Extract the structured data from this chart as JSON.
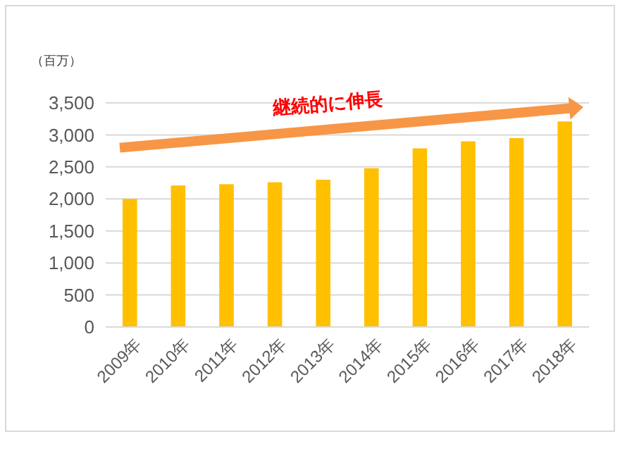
{
  "chart_data": {
    "type": "bar",
    "ylabel": "（百万）",
    "annotations": [
      "継続的に伸長"
    ],
    "categories": [
      "2009年",
      "2010年",
      "2011年",
      "2012年",
      "2013年",
      "2014年",
      "2015年",
      "2016年",
      "2017年",
      "2018年"
    ],
    "values": [
      2000,
      2210,
      2230,
      2260,
      2300,
      2480,
      2790,
      2900,
      2950,
      3210
    ],
    "color": "#ffc000",
    "ylim": [
      0,
      3500
    ],
    "yticks": [
      {
        "value": 0,
        "label": "0"
      },
      {
        "value": 500,
        "label": "500"
      },
      {
        "value": 1000,
        "label": "1,000"
      },
      {
        "value": 1500,
        "label": "1,500"
      },
      {
        "value": 2000,
        "label": "2,000"
      },
      {
        "value": 2500,
        "label": "2,500"
      },
      {
        "value": 3000,
        "label": "3,000"
      },
      {
        "value": 3500,
        "label": "3,500"
      }
    ],
    "grid": "y"
  }
}
